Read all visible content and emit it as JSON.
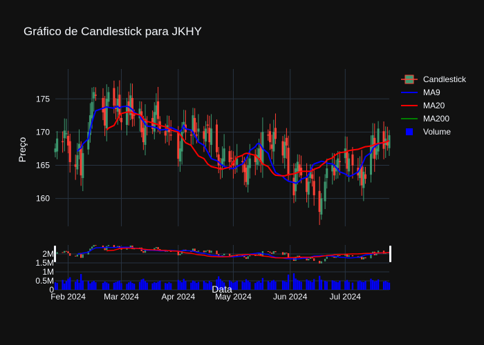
{
  "chart_data": {
    "type": "candlestick",
    "title": "Gráfico de Candlestick para JKHY",
    "xlabel": "Data",
    "ylabel": "Preço",
    "x_ticks": [
      "Feb 2024",
      "Mar 2024",
      "Apr 2024",
      "May 2024",
      "Jun 2024",
      "Jul 2024"
    ],
    "price_ticks": [
      160,
      165,
      170,
      175
    ],
    "price_range": [
      155.8,
      179.5
    ],
    "volume_ticks": [
      "0",
      "0.5M",
      "1M",
      "1.5M",
      "2M"
    ],
    "volume_range": [
      0,
      2.5
    ],
    "legend": [
      "Candlestick",
      "MA9",
      "MA20",
      "MA200",
      "Volume"
    ],
    "colors": {
      "background": "#111111",
      "grid": "#283442",
      "increasing": "#3d9970",
      "decreasing": "#ff4136",
      "ma9": "#0000ff",
      "ma20": "#ff0000",
      "ma200": "#008000",
      "volume": "#0000ff",
      "text": "#f2f5fa"
    },
    "dates": [
      "2024-01-25",
      "2024-01-26",
      "2024-01-29",
      "2024-01-30",
      "2024-01-31",
      "2024-02-01",
      "2024-02-02",
      "2024-02-05",
      "2024-02-06",
      "2024-02-07",
      "2024-02-08",
      "2024-02-09",
      "2024-02-12",
      "2024-02-13",
      "2024-02-14",
      "2024-02-15",
      "2024-02-16",
      "2024-02-20",
      "2024-02-21",
      "2024-02-22",
      "2024-02-23",
      "2024-02-26",
      "2024-02-27",
      "2024-02-28",
      "2024-02-29",
      "2024-03-01",
      "2024-03-04",
      "2024-03-05",
      "2024-03-06",
      "2024-03-07",
      "2024-03-08",
      "2024-03-11",
      "2024-03-12",
      "2024-03-13",
      "2024-03-14",
      "2024-03-15",
      "2024-03-18",
      "2024-03-19",
      "2024-03-20",
      "2024-03-21",
      "2024-03-22",
      "2024-03-25",
      "2024-03-26",
      "2024-03-27",
      "2024-03-28",
      "2024-04-01",
      "2024-04-02",
      "2024-04-03",
      "2024-04-04",
      "2024-04-05",
      "2024-04-08",
      "2024-04-09",
      "2024-04-10",
      "2024-04-11",
      "2024-04-12",
      "2024-04-15",
      "2024-04-16",
      "2024-04-17",
      "2024-04-18",
      "2024-04-19",
      "2024-04-22",
      "2024-04-23",
      "2024-04-24",
      "2024-04-25",
      "2024-04-26",
      "2024-04-29",
      "2024-04-30",
      "2024-05-01",
      "2024-05-02",
      "2024-05-03",
      "2024-05-06",
      "2024-05-07",
      "2024-05-08",
      "2024-05-09",
      "2024-05-10",
      "2024-05-13",
      "2024-05-14",
      "2024-05-15",
      "2024-05-16",
      "2024-05-17",
      "2024-05-20",
      "2024-05-21",
      "2024-05-22",
      "2024-05-23",
      "2024-05-24",
      "2024-05-28",
      "2024-05-29",
      "2024-05-30",
      "2024-05-31",
      "2024-06-03",
      "2024-06-04",
      "2024-06-05",
      "2024-06-06",
      "2024-06-07",
      "2024-06-10",
      "2024-06-11",
      "2024-06-12",
      "2024-06-13",
      "2024-06-14",
      "2024-06-17",
      "2024-06-18",
      "2024-06-20",
      "2024-06-21",
      "2024-06-24",
      "2024-06-25",
      "2024-06-26",
      "2024-06-27",
      "2024-06-28",
      "2024-07-01",
      "2024-07-02",
      "2024-07-03",
      "2024-07-05",
      "2024-07-08",
      "2024-07-09",
      "2024-07-10",
      "2024-07-11",
      "2024-07-12",
      "2024-07-15",
      "2024-07-16",
      "2024-07-17",
      "2024-07-18",
      "2024-07-19",
      "2024-07-22",
      "2024-07-23",
      "2024-07-24",
      "2024-07-25"
    ],
    "close": [
      167.5,
      169.0,
      168.5,
      170.2,
      169.8,
      168.0,
      165.5,
      164.8,
      166.5,
      168.2,
      163.5,
      166.8,
      170.0,
      172.5,
      174.5,
      176.0,
      175.5,
      173.0,
      171.0,
      175.0,
      176.0,
      174.0,
      173.5,
      175.0,
      172.5,
      171.5,
      174.0,
      173.0,
      175.5,
      172.0,
      172.5,
      173.5,
      170.0,
      168.5,
      172.0,
      171.5,
      170.5,
      173.0,
      174.0,
      172.0,
      170.5,
      169.5,
      171.0,
      170.0,
      169.5,
      166.0,
      167.5,
      170.0,
      171.5,
      170.0,
      169.5,
      172.5,
      170.0,
      169.5,
      170.5,
      169.0,
      170.5,
      171.0,
      168.5,
      170.5,
      167.0,
      165.0,
      164.5,
      166.0,
      167.5,
      165.5,
      166.0,
      165.0,
      164.5,
      166.0,
      165.5,
      164.0,
      162.5,
      165.0,
      166.0,
      165.5,
      166.5,
      167.5,
      165.5,
      170.0,
      169.5,
      168.5,
      167.5,
      170.0,
      169.0,
      166.5,
      168.5,
      168.0,
      163.5,
      160.5,
      164.5,
      165.5,
      164.0,
      163.5,
      161.0,
      162.5,
      164.0,
      163.0,
      160.5,
      158.0,
      160.0,
      162.5,
      164.5,
      165.0,
      163.5,
      165.0,
      166.0,
      165.5,
      167.5,
      164.5,
      166.0,
      165.0,
      163.5,
      164.5,
      162.0,
      164.0,
      163.0,
      168.0,
      169.5,
      166.0,
      167.5,
      170.5,
      167.5,
      169.0,
      168.0,
      169.5
    ],
    "ma9": [
      null,
      null,
      null,
      null,
      null,
      null,
      null,
      null,
      167.1,
      167.4,
      167.6,
      168.2,
      169.0,
      170.3,
      171.5,
      172.4,
      173.2,
      173.6,
      173.7,
      173.8,
      173.7,
      173.6,
      173.8,
      173.9,
      173.6,
      173.8,
      173.9,
      173.8,
      173.6,
      173.4,
      173.0,
      172.5,
      172.0,
      171.6,
      171.2,
      170.9,
      170.8,
      170.7,
      170.7,
      170.5,
      170.3,
      170.4,
      170.3,
      170.6,
      170.7,
      170.2,
      170.1,
      170.4,
      171.0,
      170.5,
      170.3,
      170.0,
      169.5,
      169.0,
      168.5,
      168.0,
      167.5,
      167.0,
      166.5,
      166.0,
      165.7,
      165.5,
      165.2,
      165.0,
      164.8,
      164.6,
      164.5,
      164.5,
      164.6,
      164.8,
      165.2,
      165.6,
      166.0,
      166.5,
      167.2,
      167.8,
      168.2,
      168.3,
      168.0,
      167.5,
      166.8,
      165.9,
      165.2,
      164.6,
      163.9,
      163.3,
      163.0,
      162.8,
      162.6,
      162.4,
      162.3,
      162.4,
      162.6,
      162.9,
      163.2,
      163.6,
      164.2,
      164.8,
      165.2,
      165.5,
      165.6,
      165.5,
      165.3,
      165.2,
      165.0,
      164.7,
      164.4,
      164.0,
      163.7,
      163.5,
      163.3,
      163.5,
      164.0,
      164.5,
      165.0,
      165.6,
      166.3,
      166.9,
      167.5,
      167.8,
      168.0,
      168.2,
      168.4,
      168.5,
      168.6,
      168.7
    ],
    "ma20": [
      null,
      null,
      null,
      null,
      null,
      null,
      null,
      null,
      null,
      null,
      null,
      null,
      null,
      null,
      null,
      null,
      null,
      null,
      null,
      170.3,
      170.6,
      171.0,
      171.5,
      172.0,
      172.5,
      172.8,
      173.0,
      173.0,
      173.0,
      172.9,
      172.8,
      172.6,
      172.4,
      172.0,
      171.8,
      171.6,
      171.4,
      171.3,
      171.2,
      171.1,
      171.0,
      170.8,
      170.6,
      170.5,
      170.3,
      170.0,
      169.6,
      169.2,
      168.8,
      168.4,
      168.0,
      167.6,
      167.2,
      166.8,
      166.4,
      166.0,
      165.6,
      165.2,
      165.0,
      164.8,
      164.6,
      164.5,
      164.4,
      164.4,
      164.5,
      164.7,
      165.0,
      165.4,
      165.8,
      166.2,
      166.5,
      166.7,
      166.8,
      166.8,
      166.7,
      166.5,
      166.2,
      165.9,
      165.6,
      165.2,
      164.8,
      164.4,
      164.0,
      163.7,
      163.5,
      163.4,
      163.4,
      163.5,
      163.6,
      163.7,
      163.8,
      163.9,
      164.0,
      164.1,
      164.1,
      164.1,
      164.1,
      164.2,
      164.4,
      164.7,
      165.0,
      165.4,
      165.8,
      166.1,
      166.4,
      166.6,
      166.8,
      166.9,
      167.0,
      167.1,
      167.2,
      167.3,
      167.4,
      167.5,
      167.6,
      167.7,
      167.8,
      167.9,
      168.0,
      168.1,
      168.2,
      168.3,
      168.4,
      168.5,
      168.6,
      168.7
    ],
    "volume_millions": [
      0.42,
      0.38,
      0.55,
      0.35,
      0.48,
      0.62,
      0.7,
      0.45,
      0.58,
      0.4,
      0.88,
      0.52,
      0.48,
      0.36,
      0.44,
      0.5,
      0.42,
      0.38,
      0.46,
      0.41,
      0.35,
      0.39,
      0.43,
      0.47,
      0.52,
      0.37,
      0.33,
      0.41,
      0.46,
      0.38,
      0.34,
      0.44,
      0.57,
      0.62,
      0.48,
      0.4,
      0.36,
      0.42,
      0.39,
      0.45,
      0.51,
      0.38,
      0.35,
      0.43,
      0.37,
      0.55,
      0.48,
      0.42,
      0.61,
      0.49,
      0.4,
      0.52,
      0.47,
      0.38,
      0.44,
      0.5,
      0.41,
      0.36,
      0.49,
      0.43,
      0.58,
      0.75,
      0.6,
      0.48,
      0.41,
      0.53,
      0.46,
      0.39,
      0.44,
      0.51,
      0.47,
      0.42,
      0.59,
      0.52,
      0.43,
      0.38,
      0.45,
      0.49,
      0.4,
      0.66,
      0.48,
      0.42,
      0.5,
      0.55,
      0.46,
      0.52,
      0.47,
      0.44,
      0.85,
      0.92,
      0.63,
      0.55,
      0.49,
      0.45,
      0.58,
      0.52,
      0.47,
      0.43,
      0.6,
      0.78,
      0.56,
      0.5,
      0.46,
      0.53,
      0.49,
      0.45,
      0.42,
      0.51,
      0.48,
      0.55,
      0.44,
      0.4,
      0.47,
      0.52,
      0.45,
      0.43,
      0.49,
      0.62,
      0.54,
      0.47,
      0.51,
      0.58,
      0.46,
      0.5,
      0.44,
      0.4
    ]
  }
}
